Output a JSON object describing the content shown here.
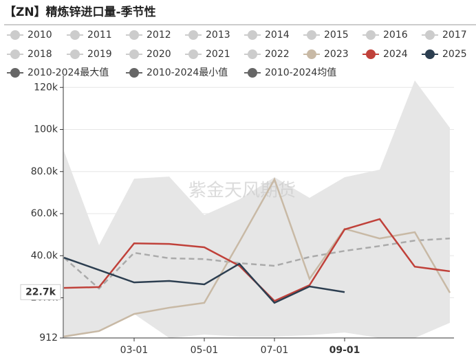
{
  "chart_data": {
    "type": "line",
    "title": "【ZN】精炼锌进口量-季节性",
    "watermark": "紫金天风期货",
    "categories": [
      null,
      null,
      "03-01",
      null,
      "05-01",
      null,
      "07-01",
      null,
      "09-01",
      null,
      null,
      null
    ],
    "legend_inactive": [
      "2010",
      "2011",
      "2012",
      "2013",
      "2014",
      "2015",
      "2016",
      "2017",
      "2018",
      "2019",
      "2020",
      "2021",
      "2022"
    ],
    "inactive_color": "#cccccc",
    "band": {
      "color": "#e6e6e6",
      "upper": {
        "name": "2010-2024最大值",
        "color": "#666666",
        "values": [
          89700,
          45000,
          76600,
          77600,
          59300,
          66800,
          77300,
          67500,
          77300,
          80900,
          123300,
          100800
        ]
      },
      "lower": {
        "name": "2010-2024最小值",
        "color": "#666666",
        "values": [
          912,
          4200,
          12300,
          912,
          2500,
          1600,
          1600,
          2200,
          3500,
          912,
          912,
          8100
        ]
      }
    },
    "series": [
      {
        "name": "2023",
        "color": "#c8b9a5",
        "values": [
          1600,
          4200,
          12300,
          15300,
          17600,
          46600,
          76300,
          29000,
          52800,
          48200,
          51200,
          22400
        ]
      },
      {
        "name": "2024",
        "color": "#c0413a",
        "values": [
          24700,
          25100,
          45900,
          45600,
          44000,
          35200,
          18500,
          26000,
          52500,
          57400,
          34800,
          32600
        ]
      },
      {
        "name": "2025",
        "color": "#2c3e50",
        "values": [
          39100,
          33200,
          27300,
          28000,
          26400,
          36200,
          17600,
          25400,
          22700,
          null,
          null,
          null
        ],
        "value_labels": [
          null,
          null,
          null,
          null,
          null,
          null,
          null,
          null,
          "22.7k",
          null,
          null,
          null
        ]
      },
      {
        "name": "2010-2024均值",
        "color": "#666666",
        "line_color": "#aaaaaa",
        "dash": true,
        "values": [
          39100,
          24400,
          41400,
          38800,
          38400,
          36500,
          35200,
          39400,
          42300,
          44600,
          47200,
          48200
        ]
      }
    ],
    "ylim": [
      912,
      124000
    ],
    "yticks": [
      912,
      {
        "value": 20000,
        "label": "20.0k"
      },
      {
        "value": 40000,
        "label": "40.0k"
      },
      {
        "value": 60000,
        "label": "60.0k"
      },
      {
        "value": 80000,
        "label": "80.0k"
      },
      {
        "value": 100000,
        "label": "100k"
      },
      {
        "value": 120000,
        "label": "120k"
      }
    ],
    "grid": true
  }
}
